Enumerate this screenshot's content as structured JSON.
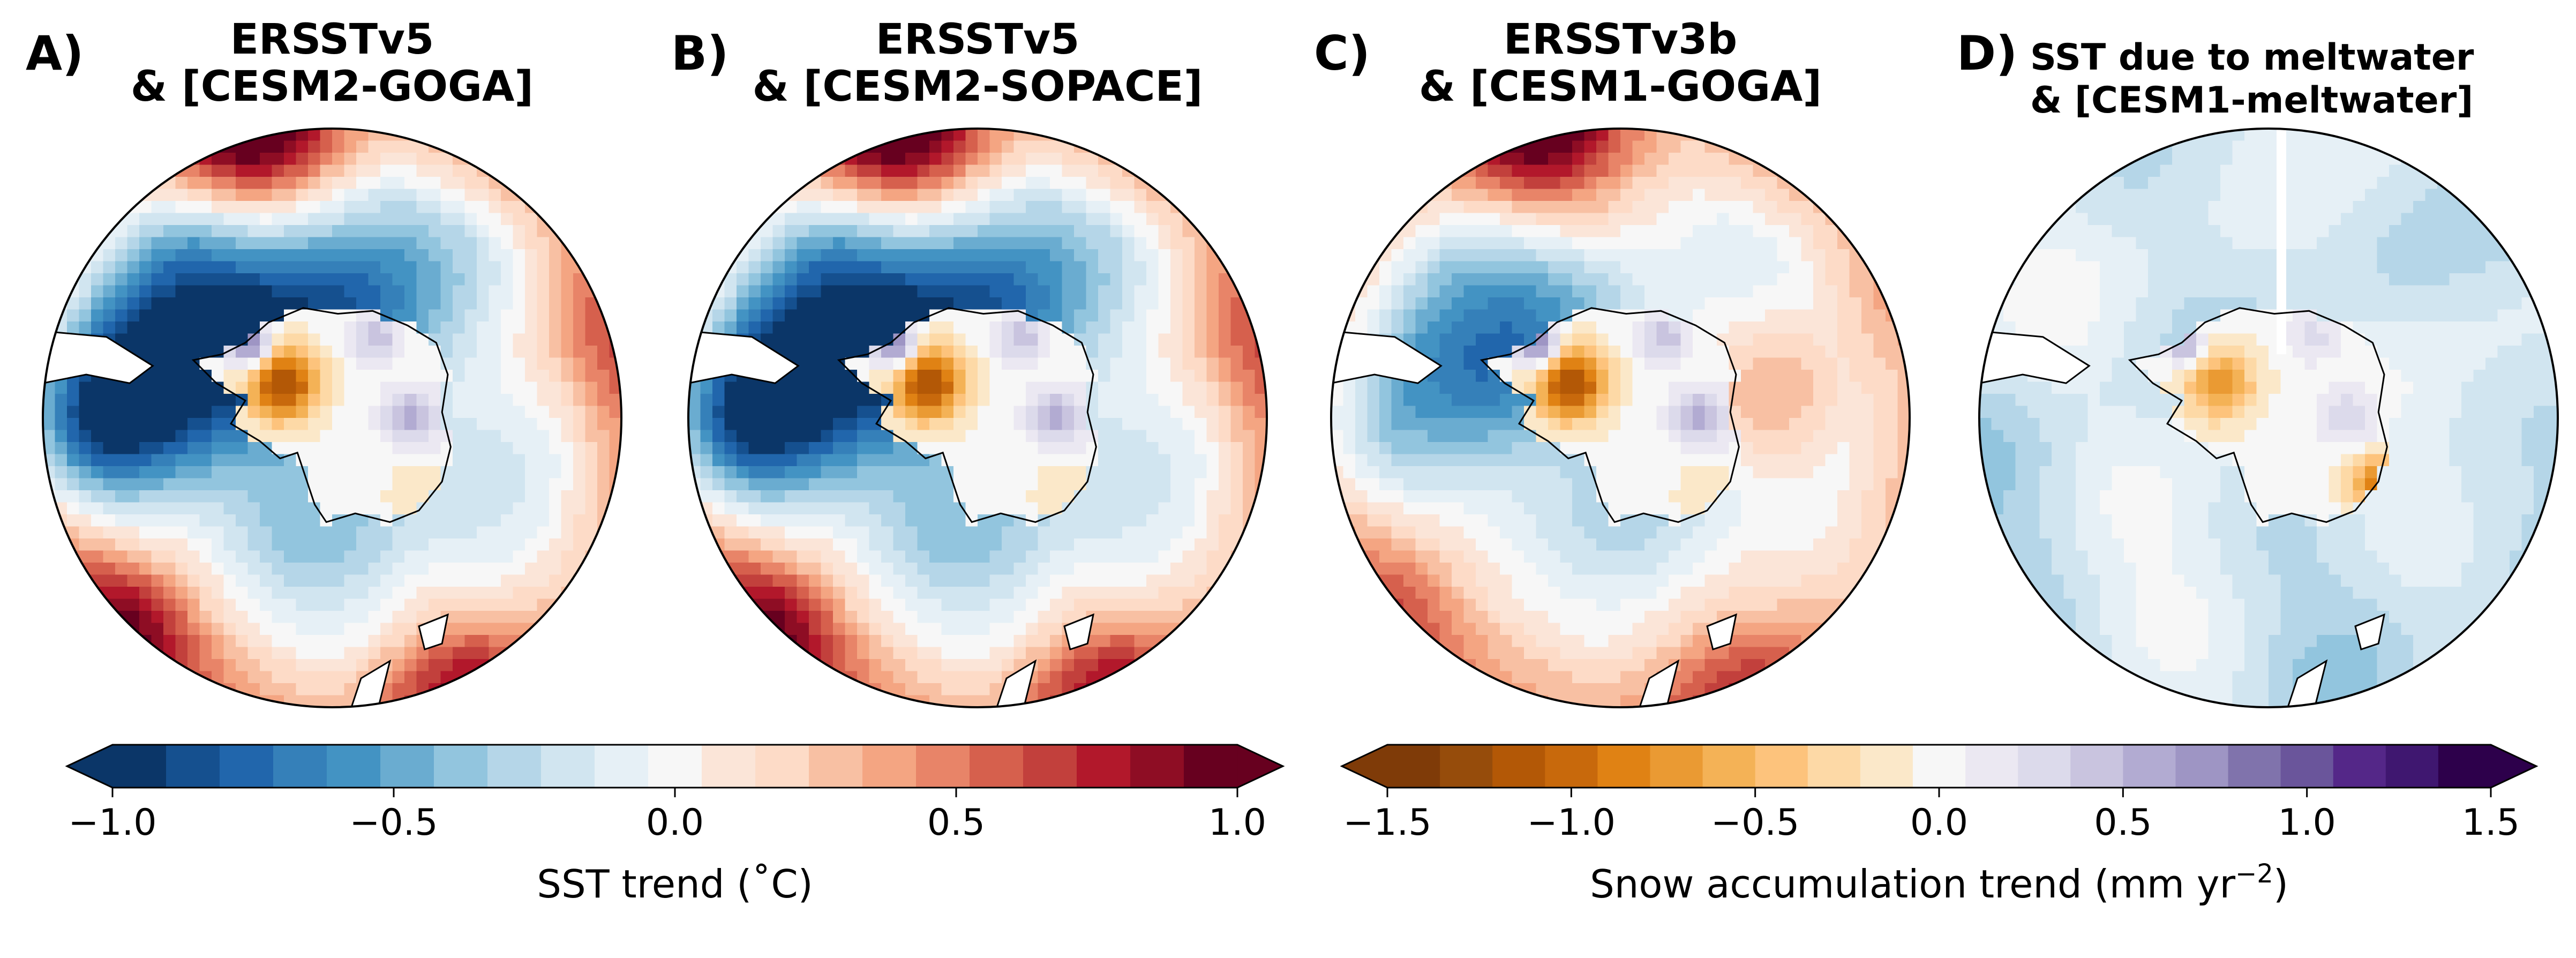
{
  "panels": [
    {
      "letter": "A)",
      "title_line1": "ERSSTv5",
      "title_line2": "& [CESM2-GOGA]",
      "variant": "strong"
    },
    {
      "letter": "B)",
      "title_line1": "ERSSTv5",
      "title_line2": "& [CESM2-SOPACE]",
      "variant": "strong"
    },
    {
      "letter": "C)",
      "title_line1": "ERSSTv3b",
      "title_line2": "& [CESM1-GOGA]",
      "variant": "mid"
    },
    {
      "letter": "D)",
      "title_line1": "SST due to meltwater",
      "title_line2": "&  [CESM1-meltwater]",
      "variant": "meltwater"
    }
  ],
  "chart_data": [
    {
      "type": "heatmap",
      "role": "colorbar",
      "label": "SST trend (˚C)",
      "range": [
        -1.0,
        1.0
      ],
      "ticks": [
        -1.0,
        -0.5,
        0.0,
        0.5,
        1.0
      ],
      "tick_labels": [
        "−1.0",
        "−0.5",
        "0.0",
        "0.5",
        "1.0"
      ],
      "n_levels": 21,
      "extend": "both",
      "colors": [
        "#0b3668",
        "#15508f",
        "#2166ac",
        "#3580b9",
        "#4393c3",
        "#6aacd0",
        "#92c5de",
        "#b5d6e8",
        "#d1e5f0",
        "#e6f0f6",
        "#f7f7f7",
        "#fbe5d8",
        "#fddbc7",
        "#f8c0a3",
        "#f4a582",
        "#e88468",
        "#d6604d",
        "#c2403c",
        "#b2182b",
        "#8e0d24",
        "#67001f"
      ]
    },
    {
      "type": "heatmap",
      "role": "colorbar",
      "label": "Snow accumulation trend (mm yr",
      "label_sup": "−2",
      "label_end": ")",
      "range": [
        -1.5,
        1.5
      ],
      "ticks": [
        -1.5,
        -1.0,
        -0.5,
        0.0,
        0.5,
        1.0,
        1.5
      ],
      "tick_labels": [
        "−1.5",
        "−1.0",
        "−0.5",
        "0.0",
        "0.5",
        "1.0",
        "1.5"
      ],
      "n_levels": 21,
      "extend": "both",
      "colors": [
        "#7f3b08",
        "#964c0b",
        "#b35806",
        "#c8690c",
        "#e08214",
        "#ea9a33",
        "#f4b256",
        "#fdc37c",
        "#fdd9a6",
        "#fbe8c9",
        "#f7f7f7",
        "#ebe8f2",
        "#dcdaeb",
        "#c9c4df",
        "#b2abd2",
        "#9e95c4",
        "#8073ac",
        "#6a559b",
        "#542788",
        "#3f1770",
        "#2d004b"
      ]
    }
  ]
}
